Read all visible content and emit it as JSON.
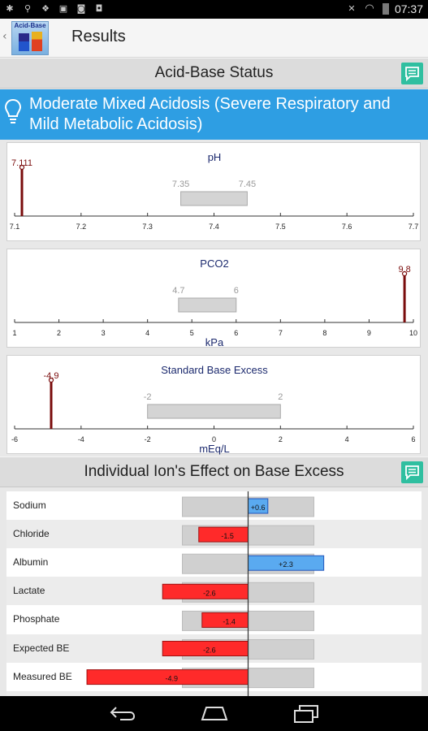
{
  "status_bar": {
    "time": "07:37"
  },
  "action_bar": {
    "title": "Results",
    "logo_text": "Acid-Base"
  },
  "acid_base_header": {
    "title": "Acid-Base Status"
  },
  "diagnosis": {
    "text": "Moderate Mixed Acidosis (Severe Respiratory and Mild Metabolic Acidosis)"
  },
  "ph_chart": {
    "title": "pH",
    "unit": "",
    "value": 7.111,
    "value_label": "7.111",
    "normal_range": [
      7.35,
      7.45
    ],
    "normal_labels": [
      "7.35",
      "7.45"
    ],
    "xlim": [
      7.1,
      7.7
    ],
    "ticks": [
      "7.1",
      "7.2",
      "7.3",
      "7.4",
      "7.5",
      "7.6",
      "7.7"
    ]
  },
  "pco2_chart": {
    "title": "PCO2",
    "unit": "kPa",
    "value": 9.8,
    "value_label": "9.8",
    "normal_range": [
      4.7,
      6
    ],
    "normal_labels": [
      "4.7",
      "6"
    ],
    "xlim": [
      1,
      10
    ],
    "ticks": [
      "1",
      "2",
      "3",
      "4",
      "5",
      "6",
      "7",
      "8",
      "9",
      "10"
    ]
  },
  "sbe_chart": {
    "title": "Standard Base Excess",
    "unit": "mEq/L",
    "value": -4.9,
    "value_label": "-4.9",
    "normal_range": [
      -2,
      2
    ],
    "normal_labels": [
      "-2",
      "2"
    ],
    "xlim": [
      -6,
      6
    ],
    "ticks": [
      "-6",
      "-4",
      "-2",
      "0",
      "2",
      "4",
      "6"
    ]
  },
  "ion_header": {
    "title": "Individual Ion's Effect on Base Excess"
  },
  "ion_effects": {
    "rows": [
      {
        "label": "Sodium",
        "value": 0.6,
        "value_label": "+0.6",
        "color": "#5aaaf0"
      },
      {
        "label": "Chloride",
        "value": -1.5,
        "value_label": "-1.5",
        "color": "#ff2a2a"
      },
      {
        "label": "Albumin",
        "value": 2.3,
        "value_label": "+2.3",
        "color": "#5aaaf0"
      },
      {
        "label": "Lactate",
        "value": -2.6,
        "value_label": "-2.6",
        "color": "#ff2a2a"
      },
      {
        "label": "Phosphate",
        "value": -1.4,
        "value_label": "-1.4",
        "color": "#ff2a2a"
      },
      {
        "label": "Expected BE",
        "value": -2.6,
        "value_label": "-2.6",
        "color": "#ff2a2a"
      },
      {
        "label": "Measured BE",
        "value": -4.9,
        "value_label": "-4.9",
        "color": "#ff2a2a"
      }
    ],
    "reference_range": [
      -2,
      2
    ]
  },
  "colors": {
    "accent": "#2e9ee3",
    "comment_button": "#2fbfa0",
    "marker": "#7a0c0c",
    "positive_bar": "#5aaaf0",
    "negative_bar": "#ff2a2a"
  }
}
